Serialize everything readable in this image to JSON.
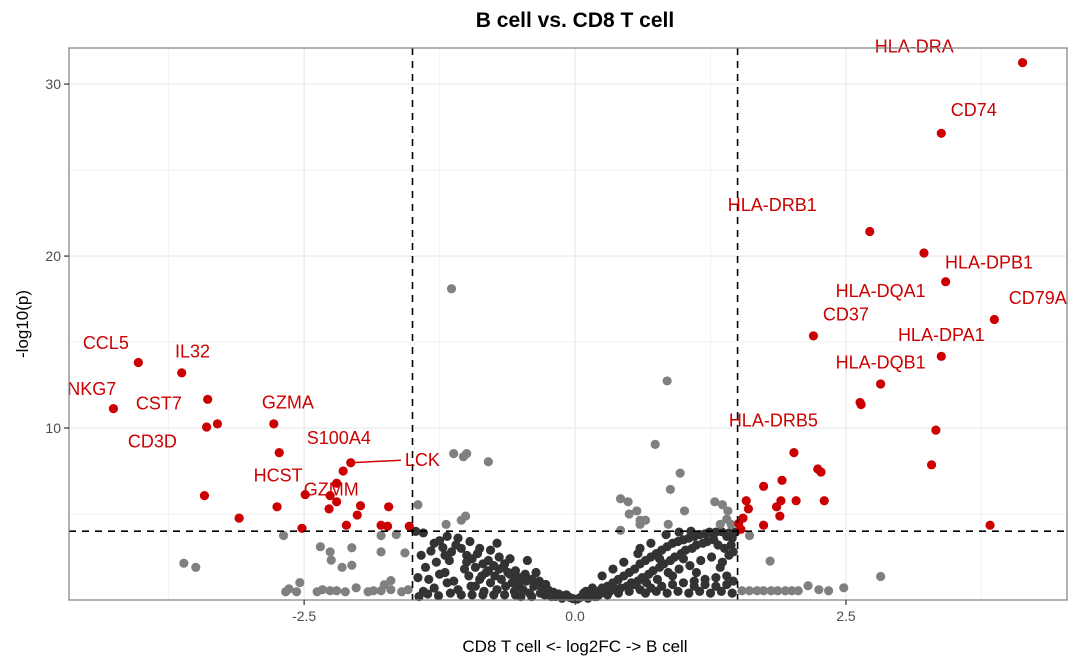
{
  "chart_data": {
    "type": "scatter",
    "title": "B cell vs. CD8 T cell",
    "xlabel": "CD8 T cell <- log2FC -> B cell",
    "ylabel": "-log10(p)",
    "xlim": [
      -4.67,
      4.54
    ],
    "ylim": [
      0,
      32.1
    ],
    "x_ticks": [
      {
        "value": -2.5,
        "label": "-2.5"
      },
      {
        "value": 0.0,
        "label": "0.0"
      },
      {
        "value": 2.5,
        "label": "2.5"
      }
    ],
    "y_ticks": [
      {
        "value": 10,
        "label": "10"
      },
      {
        "value": 20,
        "label": "20"
      },
      {
        "value": 30,
        "label": "30"
      }
    ],
    "x_minor_grid": [
      -3.75,
      -1.25,
      1.25,
      3.75
    ],
    "y_minor_grid": [
      5,
      15,
      25
    ],
    "grid": true,
    "thresholds": {
      "log2fc": [
        -1.5,
        1.5
      ],
      "neg_log10_p": 4.0
    },
    "colors": {
      "significant": "#cc0000",
      "p_only": "#808080",
      "not_significant": "#333333",
      "threshold_line": "#000000"
    },
    "labeled_genes": [
      {
        "gene": "HLA-DRA",
        "x": 4.13,
        "y": 31.25,
        "dx": -1.0,
        "dy": 0.6
      },
      {
        "gene": "CD74",
        "x": 3.38,
        "y": 27.14,
        "dx": 0.3,
        "dy": 1.0
      },
      {
        "gene": "HLA-DRB1",
        "x": 2.72,
        "y": 21.43,
        "dx": -0.9,
        "dy": 1.2
      },
      {
        "gene": "HLA-DPB1",
        "x": 3.22,
        "y": 20.18,
        "dx": 0.6,
        "dy": -0.9
      },
      {
        "gene": "HLA-DQA1",
        "x": 3.42,
        "y": 18.51,
        "dx": -0.6,
        "dy": -0.9
      },
      {
        "gene": "CD79A",
        "x": 3.87,
        "y": 16.31,
        "dx": 0.4,
        "dy": 0.9
      },
      {
        "gene": "CD37",
        "x": 2.2,
        "y": 15.36,
        "dx": 0.3,
        "dy": 0.9
      },
      {
        "gene": "HLA-DPA1",
        "x": 3.38,
        "y": 14.17,
        "dx": 0.0,
        "dy": 0.9
      },
      {
        "gene": "HLA-DQB1",
        "x": 2.82,
        "y": 12.56,
        "dx": 0.0,
        "dy": 0.9
      },
      {
        "gene": "HLA-DRB5",
        "x": 2.63,
        "y": 11.49,
        "dx": -0.8,
        "dy": -1.4
      },
      {
        "gene": "CCL5",
        "x": -4.03,
        "y": 13.81,
        "dx": -0.3,
        "dy": 0.8
      },
      {
        "gene": "IL32",
        "x": -3.63,
        "y": 13.21,
        "dx": 0.1,
        "dy": 0.9
      },
      {
        "gene": "NKG7",
        "x": -4.26,
        "y": 11.13,
        "dx": -0.2,
        "dy": 0.8
      },
      {
        "gene": "CST7",
        "x": -3.39,
        "y": 11.67,
        "dx": -0.45,
        "dy": -0.6
      },
      {
        "gene": "GZMA",
        "x": -3.3,
        "y": 10.24,
        "dx": 0.65,
        "dy": 0.9
      },
      {
        "gene": "CD3D",
        "x": -3.4,
        "y": 10.06,
        "dx": -0.5,
        "dy": -1.2
      },
      {
        "gene": "S100A4",
        "x": -2.73,
        "y": 8.57,
        "dx": 0.55,
        "dy": 0.5
      },
      {
        "gene": "LCK",
        "x": -2.07,
        "y": 7.98,
        "dx": 0.5,
        "dy": -0.2,
        "segment": true
      },
      {
        "gene": "HCST",
        "x": -2.14,
        "y": 7.5,
        "dx": -0.6,
        "dy": -0.6
      },
      {
        "gene": "GZMM",
        "x": -2.2,
        "y": 6.79,
        "dx": -0.05,
        "dy": -0.7
      }
    ],
    "significant_points": [
      [
        3.33,
        9.88
      ],
      [
        3.29,
        7.86
      ],
      [
        2.64,
        11.37
      ],
      [
        2.02,
        8.57
      ],
      [
        2.24,
        7.62
      ],
      [
        2.27,
        7.44
      ],
      [
        1.91,
        6.96
      ],
      [
        1.74,
        6.61
      ],
      [
        1.58,
        5.77
      ],
      [
        1.9,
        5.77
      ],
      [
        2.04,
        5.77
      ],
      [
        2.3,
        5.77
      ],
      [
        1.6,
        5.3
      ],
      [
        1.86,
        5.42
      ],
      [
        1.89,
        4.88
      ],
      [
        1.55,
        4.76
      ],
      [
        1.74,
        4.35
      ],
      [
        1.53,
        4.11
      ],
      [
        3.83,
        4.35
      ],
      [
        1.51,
        4.45
      ],
      [
        -2.78,
        10.24
      ],
      [
        -3.42,
        6.07
      ],
      [
        -2.49,
        6.13
      ],
      [
        -2.26,
        6.07
      ],
      [
        -2.2,
        5.71
      ],
      [
        -2.75,
        5.42
      ],
      [
        -2.27,
        5.3
      ],
      [
        -1.98,
        5.48
      ],
      [
        -1.72,
        5.42
      ],
      [
        -3.1,
        4.76
      ],
      [
        -2.01,
        4.94
      ],
      [
        -2.52,
        4.17
      ],
      [
        -2.11,
        4.35
      ],
      [
        -1.79,
        4.35
      ],
      [
        -1.73,
        4.29
      ],
      [
        -1.53,
        4.29
      ]
    ],
    "p_only_points": [
      [
        -1.14,
        18.1
      ],
      [
        0.85,
        12.74
      ],
      [
        -1.12,
        8.51
      ],
      [
        -1.03,
        8.33
      ],
      [
        -1.0,
        8.51
      ],
      [
        -0.8,
        8.04
      ],
      [
        0.74,
        9.05
      ],
      [
        0.97,
        7.38
      ],
      [
        0.88,
        6.43
      ],
      [
        0.42,
        5.89
      ],
      [
        0.49,
        5.71
      ],
      [
        0.5,
        5.0
      ],
      [
        0.57,
        5.18
      ],
      [
        0.6,
        4.64
      ],
      [
        0.65,
        4.64
      ],
      [
        0.6,
        4.4
      ],
      [
        0.42,
        4.05
      ],
      [
        0.86,
        4.4
      ],
      [
        1.01,
        5.18
      ],
      [
        1.29,
        5.71
      ],
      [
        1.36,
        5.54
      ],
      [
        1.41,
        5.18
      ],
      [
        1.4,
        4.7
      ],
      [
        1.34,
        4.4
      ],
      [
        1.44,
        4.4
      ],
      [
        -1.45,
        5.54
      ],
      [
        -1.19,
        4.4
      ],
      [
        -1.05,
        4.64
      ],
      [
        -1.01,
        4.88
      ],
      [
        -2.69,
        3.75
      ],
      [
        -3.61,
        2.14
      ],
      [
        -3.5,
        1.9
      ],
      [
        -2.35,
        3.1
      ],
      [
        -2.26,
        2.8
      ],
      [
        -2.25,
        2.32
      ],
      [
        -2.15,
        1.9
      ],
      [
        -2.06,
        2.02
      ],
      [
        -2.06,
        3.04
      ],
      [
        -1.79,
        3.75
      ],
      [
        -1.79,
        2.8
      ],
      [
        -1.65,
        3.81
      ],
      [
        -1.57,
        2.74
      ],
      [
        -2.67,
        0.48
      ],
      [
        -2.64,
        0.65
      ],
      [
        -2.57,
        0.48
      ],
      [
        -2.54,
        1.01
      ],
      [
        -2.38,
        0.48
      ],
      [
        -2.33,
        0.6
      ],
      [
        -2.26,
        0.54
      ],
      [
        -2.2,
        0.54
      ],
      [
        -2.12,
        0.48
      ],
      [
        -2.02,
        0.71
      ],
      [
        -1.91,
        0.48
      ],
      [
        -1.86,
        0.54
      ],
      [
        -1.79,
        0.54
      ],
      [
        -1.76,
        0.89
      ],
      [
        -1.7,
        0.6
      ],
      [
        -1.7,
        1.13
      ],
      [
        -1.6,
        0.48
      ],
      [
        -1.54,
        0.6
      ],
      [
        1.61,
        3.75
      ],
      [
        1.8,
        2.26
      ],
      [
        2.82,
        1.37
      ],
      [
        1.54,
        0.54
      ],
      [
        1.61,
        0.54
      ],
      [
        1.68,
        0.54
      ],
      [
        1.74,
        0.54
      ],
      [
        1.81,
        0.54
      ],
      [
        1.87,
        0.54
      ],
      [
        1.94,
        0.54
      ],
      [
        2.0,
        0.54
      ],
      [
        2.06,
        0.54
      ],
      [
        2.15,
        0.83
      ],
      [
        2.25,
        0.6
      ],
      [
        2.34,
        0.54
      ],
      [
        2.48,
        0.71
      ]
    ],
    "ns_points": [
      [
        -1.47,
        3.99
      ],
      [
        -1.4,
        3.9
      ],
      [
        -1.3,
        3.3
      ],
      [
        -1.25,
        3.45
      ],
      [
        -1.22,
        3.05
      ],
      [
        -1.18,
        3.7
      ],
      [
        -1.14,
        2.8
      ],
      [
        -1.1,
        3.2
      ],
      [
        -1.05,
        3.0
      ],
      [
        -1.0,
        2.6
      ],
      [
        -0.95,
        2.4
      ],
      [
        -0.9,
        2.7
      ],
      [
        -0.85,
        2.1
      ],
      [
        -0.8,
        2.3
      ],
      [
        -0.75,
        2.0
      ],
      [
        -0.7,
        1.8
      ],
      [
        -0.65,
        2.1
      ],
      [
        -0.6,
        1.5
      ],
      [
        -0.55,
        1.7
      ],
      [
        -0.5,
        1.3
      ],
      [
        -0.45,
        1.1
      ],
      [
        -0.4,
        1.2
      ],
      [
        -0.35,
        0.9
      ],
      [
        -0.3,
        0.7
      ],
      [
        -0.25,
        0.6
      ],
      [
        -0.2,
        0.45
      ],
      [
        -0.15,
        0.35
      ],
      [
        -0.1,
        0.25
      ],
      [
        -0.05,
        0.15
      ],
      [
        -1.42,
        2.6
      ],
      [
        -1.38,
        1.9
      ],
      [
        -1.35,
        1.2
      ],
      [
        -1.3,
        0.7
      ],
      [
        -1.28,
        2.2
      ],
      [
        -1.2,
        1.6
      ],
      [
        -1.16,
        2.3
      ],
      [
        -1.12,
        1.1
      ],
      [
        -1.08,
        0.6
      ],
      [
        -1.02,
        1.8
      ],
      [
        -0.98,
        1.4
      ],
      [
        -0.96,
        0.8
      ],
      [
        -0.92,
        1.9
      ],
      [
        -0.88,
        1.2
      ],
      [
        -0.84,
        0.5
      ],
      [
        -0.82,
        1.6
      ],
      [
        -0.78,
        1.0
      ],
      [
        -0.74,
        1.4
      ],
      [
        -0.72,
        0.6
      ],
      [
        -0.68,
        1.2
      ],
      [
        -0.64,
        0.8
      ],
      [
        -0.62,
        1.6
      ],
      [
        -0.58,
        1.0
      ],
      [
        -0.56,
        0.5
      ],
      [
        -0.52,
        0.9
      ],
      [
        -0.48,
        0.6
      ],
      [
        -0.46,
        1.5
      ],
      [
        -0.42,
        0.4
      ],
      [
        -0.38,
        0.8
      ],
      [
        -0.32,
        0.4
      ],
      [
        -0.28,
        0.3
      ],
      [
        -0.22,
        0.2
      ],
      [
        -0.18,
        0.2
      ],
      [
        -0.12,
        0.1
      ],
      [
        -1.45,
        1.3
      ],
      [
        -1.4,
        0.5
      ],
      [
        -1.25,
        1.5
      ],
      [
        -1.15,
        0.4
      ],
      [
        -1.05,
        0.3
      ],
      [
        -0.95,
        0.3
      ],
      [
        -0.85,
        0.3
      ],
      [
        -0.75,
        0.3
      ],
      [
        -0.65,
        0.3
      ],
      [
        -0.55,
        0.3
      ],
      [
        -0.5,
        0.2
      ],
      [
        -0.4,
        0.2
      ],
      [
        -0.33,
        1.1
      ],
      [
        -0.27,
        0.9
      ],
      [
        -0.6,
        2.4
      ],
      [
        -0.7,
        2.5
      ],
      [
        -0.78,
        2.9
      ],
      [
        -0.88,
        3.0
      ],
      [
        -0.97,
        3.4
      ],
      [
        -1.08,
        3.6
      ],
      [
        -1.33,
        2.85
      ],
      [
        -1.2,
        2.6
      ],
      [
        -1.0,
        2.2
      ],
      [
        -0.8,
        1.7
      ],
      [
        -0.66,
        1.9
      ],
      [
        -0.72,
        3.3
      ],
      [
        -0.44,
        2.3
      ],
      [
        -0.36,
        1.6
      ],
      [
        -1.44,
        0.2
      ],
      [
        -1.36,
        0.35
      ],
      [
        -1.26,
        0.25
      ],
      [
        -1.18,
        1.0
      ],
      [
        -0.92,
        0.8
      ],
      [
        -0.86,
        1.4
      ],
      [
        -0.54,
        1.3
      ],
      [
        0.05,
        0.15
      ],
      [
        0.1,
        0.3
      ],
      [
        0.15,
        0.4
      ],
      [
        0.2,
        0.5
      ],
      [
        0.25,
        0.7
      ],
      [
        0.3,
        0.8
      ],
      [
        0.35,
        1.0
      ],
      [
        0.4,
        1.2
      ],
      [
        0.45,
        1.4
      ],
      [
        0.5,
        1.6
      ],
      [
        0.55,
        1.8
      ],
      [
        0.6,
        2.1
      ],
      [
        0.65,
        2.3
      ],
      [
        0.7,
        2.5
      ],
      [
        0.75,
        2.7
      ],
      [
        0.8,
        2.9
      ],
      [
        0.85,
        3.1
      ],
      [
        0.9,
        3.3
      ],
      [
        0.95,
        3.4
      ],
      [
        1.0,
        3.5
      ],
      [
        1.05,
        3.6
      ],
      [
        1.1,
        3.7
      ],
      [
        1.15,
        3.8
      ],
      [
        1.2,
        3.85
      ],
      [
        1.25,
        3.9
      ],
      [
        1.3,
        3.95
      ],
      [
        1.35,
        3.98
      ],
      [
        1.4,
        3.7
      ],
      [
        1.45,
        3.6
      ],
      [
        0.12,
        0.1
      ],
      [
        0.18,
        0.2
      ],
      [
        0.22,
        0.3
      ],
      [
        0.28,
        0.4
      ],
      [
        0.32,
        0.5
      ],
      [
        0.38,
        0.6
      ],
      [
        0.42,
        0.7
      ],
      [
        0.48,
        0.8
      ],
      [
        0.52,
        1.0
      ],
      [
        0.58,
        1.1
      ],
      [
        0.62,
        1.3
      ],
      [
        0.68,
        1.5
      ],
      [
        0.72,
        1.7
      ],
      [
        0.78,
        1.9
      ],
      [
        0.82,
        2.1
      ],
      [
        0.88,
        2.3
      ],
      [
        0.92,
        2.5
      ],
      [
        0.98,
        2.7
      ],
      [
        1.02,
        2.9
      ],
      [
        1.08,
        3.0
      ],
      [
        1.12,
        3.2
      ],
      [
        1.18,
        3.3
      ],
      [
        1.22,
        3.4
      ],
      [
        1.28,
        3.5
      ],
      [
        1.32,
        3.2
      ],
      [
        1.38,
        3.0
      ],
      [
        1.42,
        2.6
      ],
      [
        1.46,
        2.8
      ],
      [
        0.2,
        0.2
      ],
      [
        0.3,
        0.3
      ],
      [
        0.4,
        0.4
      ],
      [
        0.5,
        0.5
      ],
      [
        0.6,
        0.6
      ],
      [
        0.7,
        0.7
      ],
      [
        0.8,
        0.8
      ],
      [
        0.9,
        0.9
      ],
      [
        1.0,
        1.0
      ],
      [
        1.1,
        1.1
      ],
      [
        1.2,
        1.2
      ],
      [
        1.3,
        1.3
      ],
      [
        1.4,
        1.4
      ],
      [
        0.65,
        0.4
      ],
      [
        0.75,
        0.5
      ],
      [
        0.85,
        0.4
      ],
      [
        0.95,
        0.5
      ],
      [
        1.05,
        0.4
      ],
      [
        1.15,
        0.5
      ],
      [
        1.25,
        0.4
      ],
      [
        1.35,
        0.5
      ],
      [
        1.45,
        0.4
      ],
      [
        1.1,
        0.8
      ],
      [
        1.2,
        0.9
      ],
      [
        1.3,
        0.8
      ],
      [
        1.4,
        0.9
      ],
      [
        1.46,
        1.1
      ],
      [
        0.55,
        0.9
      ],
      [
        0.66,
        1.0
      ],
      [
        0.76,
        1.2
      ],
      [
        0.86,
        1.6
      ],
      [
        0.96,
        1.8
      ],
      [
        1.06,
        2.0
      ],
      [
        1.16,
        2.3
      ],
      [
        1.26,
        2.5
      ],
      [
        1.36,
        2.2
      ],
      [
        0.7,
        3.3
      ],
      [
        0.84,
        3.8
      ],
      [
        0.96,
        3.95
      ],
      [
        1.07,
        4.0
      ],
      [
        1.24,
        3.95
      ],
      [
        1.42,
        3.9
      ],
      [
        0.58,
        2.7
      ],
      [
        0.45,
        2.2
      ],
      [
        0.35,
        1.8
      ],
      [
        0.25,
        1.4
      ],
      [
        0.6,
        3.0
      ],
      [
        0.78,
        2.4
      ],
      [
        1.0,
        2.4
      ],
      [
        1.12,
        1.6
      ],
      [
        1.34,
        1.9
      ],
      [
        0.9,
        1.4
      ],
      [
        1.44,
        3.2
      ],
      [
        1.48,
        3.95
      ],
      [
        0.1,
        0.5
      ],
      [
        0.16,
        0.7
      ],
      [
        0.08,
        0.4
      ],
      [
        -0.08,
        0.3
      ],
      [
        0.02,
        0.05
      ],
      [
        -0.02,
        0.08
      ]
    ]
  }
}
